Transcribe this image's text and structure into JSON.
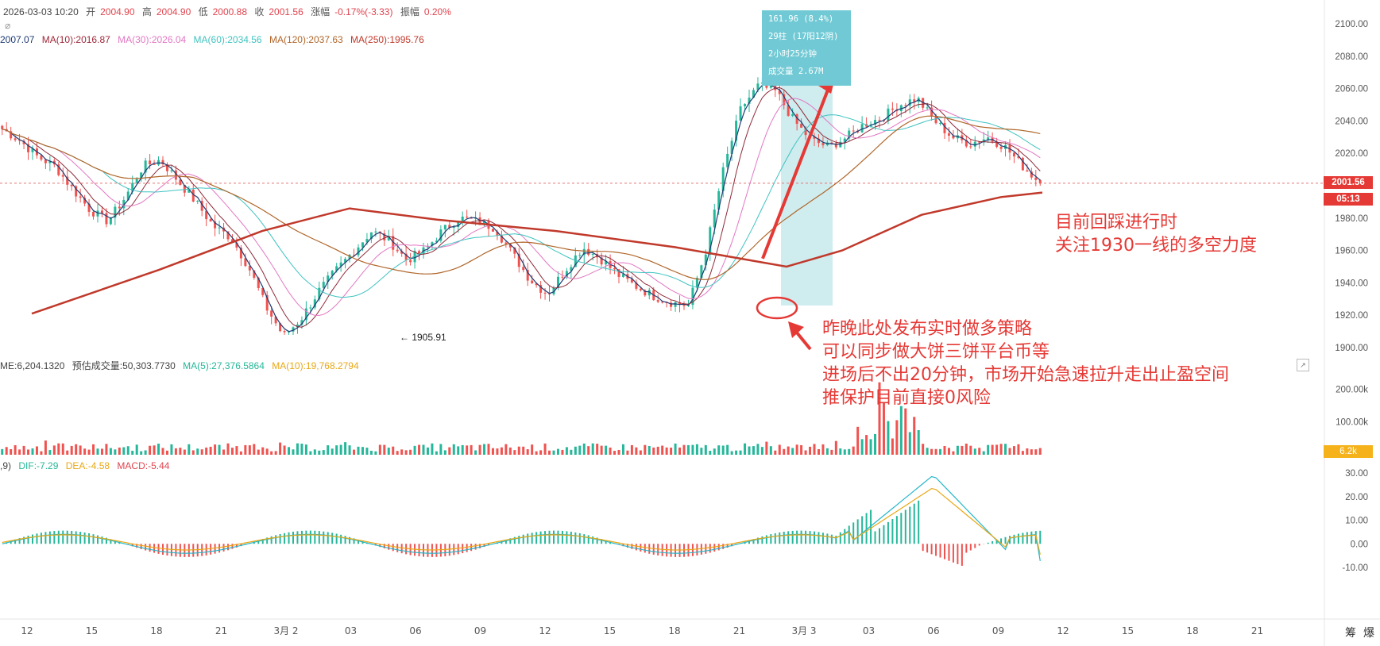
{
  "header": {
    "datetime": "2026-03-03 10:20",
    "open_label": "开",
    "open": "2004.90",
    "high_label": "高",
    "high": "2004.90",
    "low_label": "低",
    "low": "2000.88",
    "close_label": "收",
    "close": "2001.56",
    "change_label": "涨幅",
    "change": "-0.17%(-3.33)",
    "amplitude_label": "振幅",
    "amplitude": "0.20%"
  },
  "ma_legend": [
    {
      "text": "2007.07",
      "color": "#1f3b73"
    },
    {
      "text": "MA(10):2016.87",
      "color": "#a0283a"
    },
    {
      "text": "MA(30):2026.04",
      "color": "#e377c2"
    },
    {
      "text": "MA(60):2034.56",
      "color": "#3fc3c0"
    },
    {
      "text": "MA(120):2037.63",
      "color": "#b0662a"
    },
    {
      "text": "MA(250):1995.76",
      "color": "#c0392b"
    }
  ],
  "volume_legend": {
    "vol": "ME:6,204.1320",
    "est": "预估成交量:50,303.7730",
    "ma5": "MA(5):27,376.5864",
    "ma10": "MA(10):19,768.2794"
  },
  "macd_legend": {
    "prefix": ",9)",
    "dif": "DIF:-7.29",
    "dea": "DEA:-4.58",
    "macd": "MACD:-5.44"
  },
  "price_tag": "2001.56",
  "countdown_tag": "05:13",
  "volume_tag": "6.2k",
  "low_marker": "← 1905.91",
  "tooltip": [
    "161.96 (8.4%)",
    "29柱 (17阳12阴)",
    "2小时25分钟",
    "成交量 2.67M"
  ],
  "annotations": {
    "right": [
      "目前回踩进行时",
      "关注1930一线的多空力度"
    ],
    "bottom": [
      "昨晚此处发布实时做多策略",
      "可以同步做大饼三饼平台币等",
      "进场后不出20分钟，市场开始急速拉升走出止盈空间",
      "推保护目前直接0风险"
    ]
  },
  "bottom_buttons": [
    "筹",
    "爆"
  ],
  "colors": {
    "up": "#26b79a",
    "down": "#ef5350",
    "arrow": "#e53935",
    "box": "#70c9d4"
  },
  "chart_data": [
    {
      "type": "candlestick",
      "title": "",
      "ylim": [
        1880,
        2110
      ],
      "yticks": [
        "2100.00",
        "2080.00",
        "2060.00",
        "2040.00",
        "2020.00",
        "2000.00",
        "1980.00",
        "1960.00",
        "1940.00",
        "1920.00",
        "1900.00"
      ],
      "xticks": [
        "12",
        "15",
        "18",
        "21",
        "3月 2",
        "03",
        "06",
        "09",
        "12",
        "15",
        "18",
        "21",
        "3月 3",
        "03",
        "06",
        "09",
        "12",
        "15",
        "18",
        "21"
      ],
      "last_price": 2001.56,
      "low_value": 1905.91,
      "swing_move": 161.96,
      "key_prices": [
        2035,
        2028,
        2018,
        2012,
        1998,
        1985,
        1978,
        1993,
        2012,
        2016,
        2003,
        1990,
        1975,
        1968,
        1950,
        1925,
        1907,
        1918,
        1935,
        1948,
        1960,
        1972,
        1966,
        1954,
        1960,
        1972,
        1980,
        1978,
        1974,
        1958,
        1942,
        1933,
        1948,
        1962,
        1955,
        1945,
        1938,
        1932,
        1928,
        1926,
        1960,
        2010,
        2048,
        2062,
        2058,
        2040,
        2028,
        2024,
        2030,
        2038,
        2042,
        2050,
        2054,
        2040,
        2030,
        2026,
        2030,
        2024,
        2012,
        2001.56
      ],
      "series": [
        {
          "name": "MA(10)",
          "value": 2016.87
        },
        {
          "name": "MA(30)",
          "value": 2026.04
        },
        {
          "name": "MA(60)",
          "value": 2034.56
        },
        {
          "name": "MA(120)",
          "value": 2037.63
        },
        {
          "name": "MA(250)",
          "value": 1995.76
        }
      ]
    },
    {
      "type": "bar",
      "title": "volume",
      "yticks": [
        "200.00k",
        "100.00k"
      ],
      "ylim": [
        0,
        230000
      ],
      "last_volume_k": 6.2
    },
    {
      "type": "bar",
      "title": "MACD",
      "yticks": [
        "30.00",
        "20.00",
        "10.00",
        "0.00",
        "-10.00"
      ],
      "ylim": [
        -14,
        33
      ],
      "series": [
        {
          "name": "DIF",
          "value": -7.29
        },
        {
          "name": "DEA",
          "value": -4.58
        },
        {
          "name": "MACD",
          "value": -5.44
        }
      ]
    }
  ]
}
